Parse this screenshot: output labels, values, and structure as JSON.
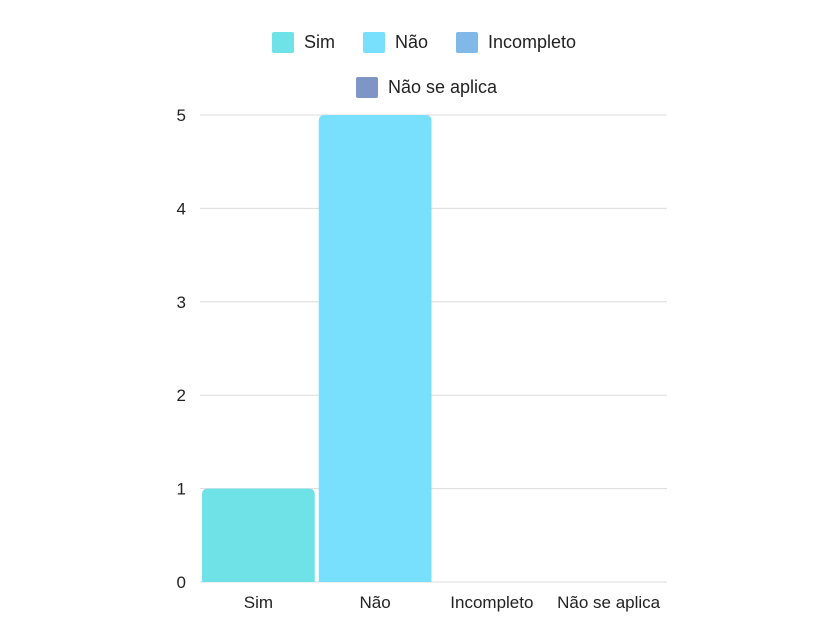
{
  "chart_data": {
    "type": "bar",
    "categories": [
      "Sim",
      "Não",
      "Incompleto",
      "Não se aplica"
    ],
    "values": [
      1,
      5,
      0,
      0
    ],
    "colors": [
      "#6ee2e6",
      "#78dffd",
      "#80b8e8",
      "#7f95c6"
    ],
    "ylim": [
      0,
      5
    ],
    "yticks": [
      "0",
      "1",
      "2",
      "3",
      "4",
      "5"
    ],
    "grid": true,
    "legend": {
      "placement": "top-center",
      "items": [
        "Sim",
        "Não",
        "Incompleto",
        "Não se aplica"
      ]
    }
  }
}
